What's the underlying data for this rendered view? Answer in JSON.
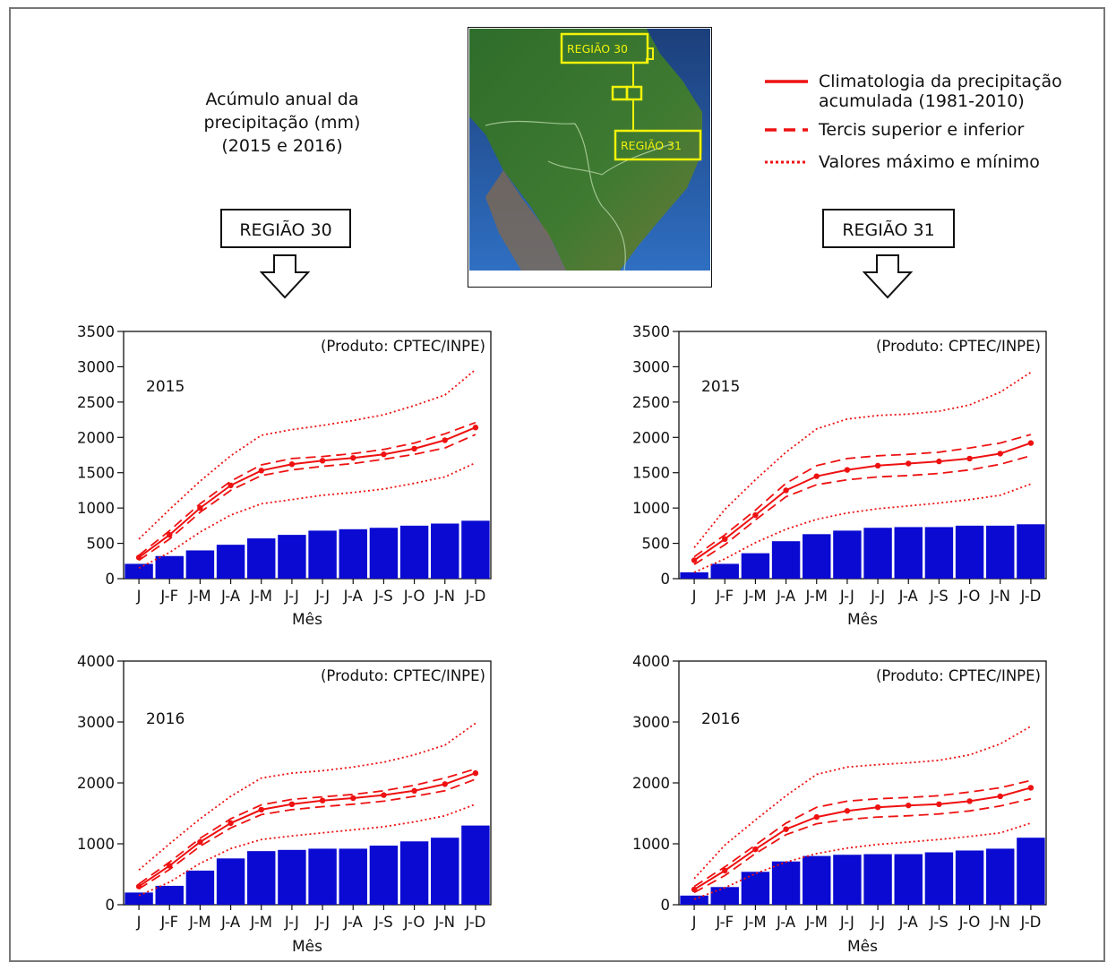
{
  "title": {
    "line1": "Acúmulo anual da",
    "line2": "precipitação (mm)",
    "line3": "(2015 e 2016)"
  },
  "regions": {
    "left": "REGIÃO 30",
    "right": "REGIÃO 31"
  },
  "map": {
    "label_30": "REGIÃO 30",
    "label_31": "REGIÃO 31"
  },
  "legend": {
    "solid": "Climatologia da precipitação",
    "solid_line2": "acumulada (1981-2010)",
    "dashed": "Tercis superior e inferior",
    "dotted": "Valores máximo e mínimo"
  },
  "colors": {
    "bars": "#0a0ad2",
    "climatology": "#ee1111"
  },
  "chart_data": [
    {
      "type": "bar",
      "region": "REGIÃO 30",
      "year_label": "2015",
      "source_label": "(Produto: CPTEC/INPE)",
      "xlabel": "Mês",
      "categories": [
        "J",
        "J-F",
        "J-M",
        "J-A",
        "J-M",
        "J-J",
        "J-J",
        "J-A",
        "J-S",
        "J-O",
        "J-N",
        "J-D"
      ],
      "ylim": [
        0,
        3500
      ],
      "yticks": [
        0,
        500,
        1000,
        1500,
        2000,
        2500,
        3000,
        3500
      ],
      "values": [
        210,
        320,
        400,
        480,
        570,
        620,
        680,
        700,
        720,
        750,
        780,
        820
      ],
      "lines": {
        "climatology": [
          300,
          620,
          1000,
          1320,
          1530,
          1620,
          1670,
          1710,
          1760,
          1840,
          1960,
          2140
        ],
        "upper_tercile": [
          330,
          680,
          1060,
          1380,
          1610,
          1700,
          1730,
          1770,
          1830,
          1920,
          2050,
          2210
        ],
        "lower_tercile": [
          260,
          560,
          940,
          1250,
          1460,
          1540,
          1590,
          1630,
          1690,
          1760,
          1850,
          2040
        ],
        "maximum": [
          560,
          980,
          1380,
          1740,
          2030,
          2110,
          2170,
          2240,
          2320,
          2450,
          2600,
          2960
        ],
        "minimum": [
          150,
          370,
          660,
          900,
          1060,
          1120,
          1180,
          1220,
          1270,
          1350,
          1440,
          1640
        ]
      }
    },
    {
      "type": "bar",
      "region": "REGIÃO 31",
      "year_label": "2015",
      "source_label": "(Produto: CPTEC/INPE)",
      "xlabel": "Mês",
      "categories": [
        "J",
        "J-F",
        "J-M",
        "J-A",
        "J-M",
        "J-J",
        "J-J",
        "J-A",
        "J-S",
        "J-O",
        "J-N",
        "J-D"
      ],
      "ylim": [
        0,
        3500
      ],
      "yticks": [
        0,
        500,
        1000,
        1500,
        2000,
        2500,
        3000,
        3500
      ],
      "values": [
        90,
        210,
        360,
        530,
        630,
        680,
        720,
        730,
        730,
        750,
        750,
        770
      ],
      "lines": {
        "climatology": [
          260,
          560,
          900,
          1250,
          1450,
          1540,
          1600,
          1630,
          1660,
          1700,
          1770,
          1920
        ],
        "upper_tercile": [
          310,
          620,
          970,
          1350,
          1600,
          1700,
          1740,
          1760,
          1790,
          1850,
          1920,
          2040
        ],
        "lower_tercile": [
          200,
          480,
          830,
          1160,
          1330,
          1400,
          1440,
          1460,
          1490,
          1540,
          1620,
          1740
        ],
        "maximum": [
          440,
          980,
          1400,
          1790,
          2120,
          2260,
          2310,
          2330,
          2370,
          2460,
          2640,
          2920
        ],
        "minimum": [
          90,
          280,
          510,
          700,
          840,
          930,
          990,
          1030,
          1070,
          1120,
          1180,
          1340
        ]
      }
    },
    {
      "type": "bar",
      "region": "REGIÃO 30",
      "year_label": "2016",
      "source_label": "(Produto: CPTEC/INPE)",
      "xlabel": "Mês",
      "categories": [
        "J",
        "J-F",
        "J-M",
        "J-A",
        "J-M",
        "J-J",
        "J-J",
        "J-A",
        "J-S",
        "J-O",
        "J-N",
        "J-D"
      ],
      "ylim": [
        0,
        4000
      ],
      "yticks": [
        0,
        1000,
        2000,
        3000,
        4000
      ],
      "values": [
        200,
        310,
        560,
        760,
        880,
        900,
        920,
        920,
        970,
        1040,
        1100,
        1300
      ],
      "lines": {
        "climatology": [
          300,
          640,
          1030,
          1340,
          1560,
          1650,
          1710,
          1750,
          1800,
          1870,
          1980,
          2160
        ],
        "upper_tercile": [
          340,
          700,
          1090,
          1410,
          1640,
          1730,
          1770,
          1810,
          1870,
          1960,
          2080,
          2230
        ],
        "lower_tercile": [
          260,
          580,
          960,
          1260,
          1480,
          1560,
          1610,
          1650,
          1700,
          1780,
          1870,
          2060
        ],
        "maximum": [
          570,
          1000,
          1410,
          1780,
          2080,
          2160,
          2200,
          2260,
          2340,
          2460,
          2620,
          2980
        ],
        "minimum": [
          150,
          370,
          680,
          920,
          1070,
          1130,
          1180,
          1230,
          1280,
          1360,
          1460,
          1650
        ]
      }
    },
    {
      "type": "bar",
      "region": "REGIÃO 31",
      "year_label": "2016",
      "source_label": "(Produto: CPTEC/INPE)",
      "xlabel": "Mês",
      "categories": [
        "J",
        "J-F",
        "J-M",
        "J-A",
        "J-M",
        "J-J",
        "J-J",
        "J-A",
        "J-S",
        "J-O",
        "J-N",
        "J-D"
      ],
      "ylim": [
        0,
        4000
      ],
      "yticks": [
        0,
        1000,
        2000,
        3000,
        4000
      ],
      "values": [
        150,
        290,
        540,
        710,
        800,
        820,
        830,
        830,
        860,
        890,
        920,
        1100
      ],
      "lines": {
        "climatology": [
          250,
          560,
          910,
          1240,
          1440,
          1540,
          1600,
          1630,
          1650,
          1700,
          1780,
          1920
        ],
        "upper_tercile": [
          300,
          620,
          980,
          1340,
          1600,
          1700,
          1740,
          1760,
          1790,
          1850,
          1920,
          2040
        ],
        "lower_tercile": [
          200,
          480,
          840,
          1150,
          1330,
          1400,
          1440,
          1460,
          1490,
          1540,
          1620,
          1740
        ],
        "maximum": [
          430,
          980,
          1390,
          1790,
          2140,
          2260,
          2300,
          2330,
          2370,
          2460,
          2640,
          2930
        ],
        "minimum": [
          90,
          280,
          510,
          700,
          840,
          930,
          990,
          1030,
          1070,
          1120,
          1180,
          1340
        ]
      }
    }
  ]
}
